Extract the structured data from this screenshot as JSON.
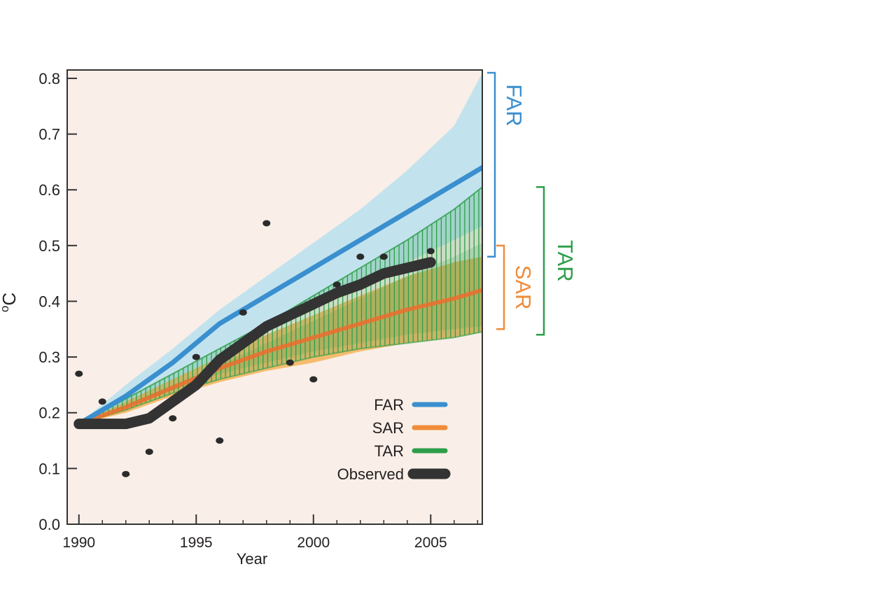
{
  "chart_data": {
    "type": "line",
    "title": "",
    "xlabel": "Year",
    "ylabel": "oC",
    "xlim": [
      1989.5,
      2007.2
    ],
    "ylim": [
      0,
      0.815
    ],
    "xticks": [
      1990,
      1995,
      2000,
      2005
    ],
    "yticks": [
      0.0,
      0.1,
      0.2,
      0.3,
      0.4,
      0.5,
      0.6,
      0.7,
      0.8
    ],
    "grid": false,
    "legend_position": "bottom-right",
    "background_color": "#f9efe8",
    "series": [
      {
        "name": "FAR",
        "color": "#3a8fcf",
        "band_color": "#bfe2ee",
        "x": [
          1990,
          1992,
          1994,
          1996,
          1998,
          2000,
          2002,
          2004,
          2006,
          2007.2
        ],
        "values": [
          0.18,
          0.23,
          0.29,
          0.36,
          0.41,
          0.46,
          0.51,
          0.56,
          0.61,
          0.64
        ],
        "band_low": [
          0.18,
          0.215,
          0.255,
          0.3,
          0.345,
          0.39,
          0.43,
          0.47,
          0.51,
          0.535
        ],
        "band_high": [
          0.18,
          0.25,
          0.315,
          0.385,
          0.445,
          0.505,
          0.565,
          0.635,
          0.715,
          0.81
        ]
      },
      {
        "name": "SAR",
        "color": "#f08c3a",
        "band_color": "#f5b661",
        "x": [
          1990,
          1992,
          1994,
          1996,
          1998,
          2000,
          2002,
          2004,
          2006,
          2007.2
        ],
        "values": [
          0.18,
          0.21,
          0.245,
          0.28,
          0.31,
          0.335,
          0.36,
          0.385,
          0.405,
          0.42
        ],
        "band_low": [
          0.18,
          0.2,
          0.23,
          0.255,
          0.275,
          0.29,
          0.31,
          0.325,
          0.335,
          0.345
        ],
        "band_high": [
          0.18,
          0.22,
          0.26,
          0.3,
          0.34,
          0.375,
          0.41,
          0.445,
          0.47,
          0.48
        ]
      },
      {
        "name": "TAR",
        "color": "#2e9e4a",
        "x": [
          1990,
          1992,
          1994,
          1996,
          1998,
          2000,
          2002,
          2004,
          2006,
          2007.2
        ],
        "band_low": [
          0.18,
          0.205,
          0.235,
          0.26,
          0.28,
          0.3,
          0.315,
          0.325,
          0.335,
          0.345
        ],
        "band_high": [
          0.18,
          0.225,
          0.27,
          0.315,
          0.36,
          0.41,
          0.46,
          0.51,
          0.565,
          0.605
        ],
        "inner_band_low": [
          0.18,
          0.21,
          0.24,
          0.27,
          0.29,
          0.31,
          0.325,
          0.34,
          0.35,
          0.355
        ],
        "inner_band_high": [
          0.18,
          0.215,
          0.25,
          0.285,
          0.325,
          0.365,
          0.405,
          0.445,
          0.48,
          0.505
        ]
      },
      {
        "name": "Observed",
        "color": "#333333",
        "x": [
          1990,
          1991,
          1992,
          1993,
          1994,
          1995,
          1996,
          1997,
          1998,
          1999,
          2000,
          2001,
          2002,
          2003,
          2004,
          2005
        ],
        "values": [
          0.18,
          0.18,
          0.18,
          0.19,
          0.22,
          0.25,
          0.295,
          0.325,
          0.355,
          0.375,
          0.395,
          0.415,
          0.43,
          0.45,
          0.46,
          0.47
        ]
      }
    ],
    "annual_points": {
      "x": [
        1990,
        1991,
        1992,
        1993,
        1994,
        1995,
        1996,
        1997,
        1998,
        1999,
        2000,
        2001,
        2002,
        2003,
        2005
      ],
      "values": [
        0.27,
        0.22,
        0.09,
        0.13,
        0.19,
        0.3,
        0.15,
        0.38,
        0.54,
        0.29,
        0.26,
        0.43,
        0.48,
        0.48,
        0.49
      ]
    },
    "brackets": [
      {
        "label": "FAR",
        "color": "#3a8fcf",
        "range": [
          0.48,
          0.81
        ]
      },
      {
        "label": "SAR",
        "color": "#f08c3a",
        "range": [
          0.35,
          0.5
        ]
      },
      {
        "label": "TAR",
        "color": "#2e9e4a",
        "range": [
          0.34,
          0.605
        ]
      }
    ],
    "legend": [
      {
        "label": "FAR",
        "color": "#3a8fcf"
      },
      {
        "label": "SAR",
        "color": "#f08c3a"
      },
      {
        "label": "TAR",
        "color": "#2e9e4a"
      },
      {
        "label": "Observed",
        "color": "#333333"
      }
    ]
  }
}
